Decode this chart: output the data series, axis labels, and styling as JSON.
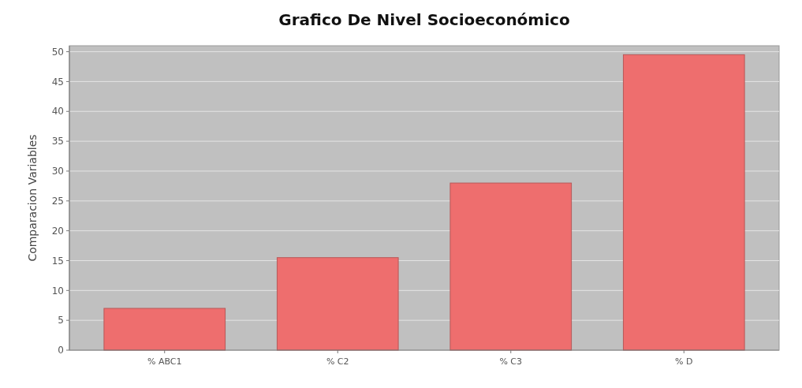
{
  "chart_data": {
    "type": "bar",
    "title": "Grafico De Nivel Socioeconómico",
    "ylabel": "Comparacion Variables",
    "categories": [
      "% ABC1",
      "% C2",
      "% C3",
      "% D"
    ],
    "values": [
      7,
      15.5,
      28,
      49.5
    ],
    "color": "#ee6e6e",
    "ylim": [
      0,
      51
    ],
    "yticks": [
      0,
      5,
      10,
      15,
      20,
      25,
      30,
      35,
      40,
      45,
      50
    ],
    "grid": "y"
  }
}
